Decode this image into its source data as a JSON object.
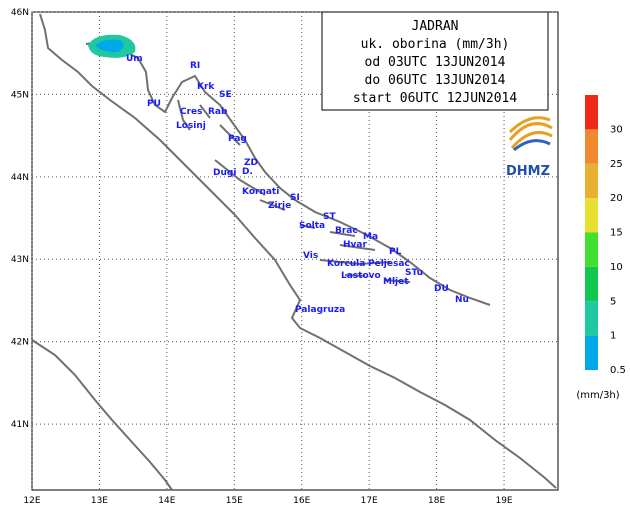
{
  "map": {
    "title_lines": [
      "JADRAN",
      "uk. oborina (mm/3h)",
      "od 03UTC 13JUN2014",
      "do 06UTC 13JUN2014",
      "start 06UTC 12JUN2014"
    ],
    "lonlim": [
      12,
      19.8
    ],
    "latlim": [
      40.2,
      46
    ],
    "lonticks": [
      {
        "value": 12,
        "label": "12E"
      },
      {
        "value": 13,
        "label": "13E"
      },
      {
        "value": 14,
        "label": "14E"
      },
      {
        "value": 15,
        "label": "15E"
      },
      {
        "value": 16,
        "label": "16E"
      },
      {
        "value": 17,
        "label": "17E"
      },
      {
        "value": 18,
        "label": "18E"
      },
      {
        "value": 19,
        "label": "19E"
      }
    ],
    "latticks": [
      {
        "value": 41,
        "label": "41N"
      },
      {
        "value": 42,
        "label": "42N"
      },
      {
        "value": 43,
        "label": "43N"
      },
      {
        "value": 44,
        "label": "44N"
      },
      {
        "value": 45,
        "label": "45N"
      },
      {
        "value": 46,
        "label": "46N"
      }
    ],
    "places": [
      "Um",
      "RI",
      "Krk",
      "SE",
      "PU",
      "Cres",
      "Rab",
      "Losinj",
      "Pag",
      "ZD",
      "Dugi",
      "D.",
      "Kornati",
      "SI",
      "Zirje",
      "ST",
      "Solta",
      "Brac",
      "Ma",
      "Hvar",
      "PL",
      "Vis",
      "Korcula",
      "Peljesac",
      "Lastovo",
      "STu",
      "Mljet",
      "DU",
      "Nu",
      "Palagruza"
    ],
    "legend": {
      "unit": "(mm/3h)",
      "items": [
        {
          "value": 0.5,
          "color": "#00a8e8"
        },
        {
          "value": 1,
          "color": "#20c8a0"
        },
        {
          "value": 5,
          "color": "#10c850"
        },
        {
          "value": 10,
          "color": "#40e030"
        },
        {
          "value": 15,
          "color": "#e8e030"
        },
        {
          "value": 20,
          "color": "#e8b030"
        },
        {
          "value": 25,
          "color": "#f08830"
        },
        {
          "value": 30,
          "color": "#f02818"
        }
      ]
    },
    "logo": "DHMZ"
  }
}
